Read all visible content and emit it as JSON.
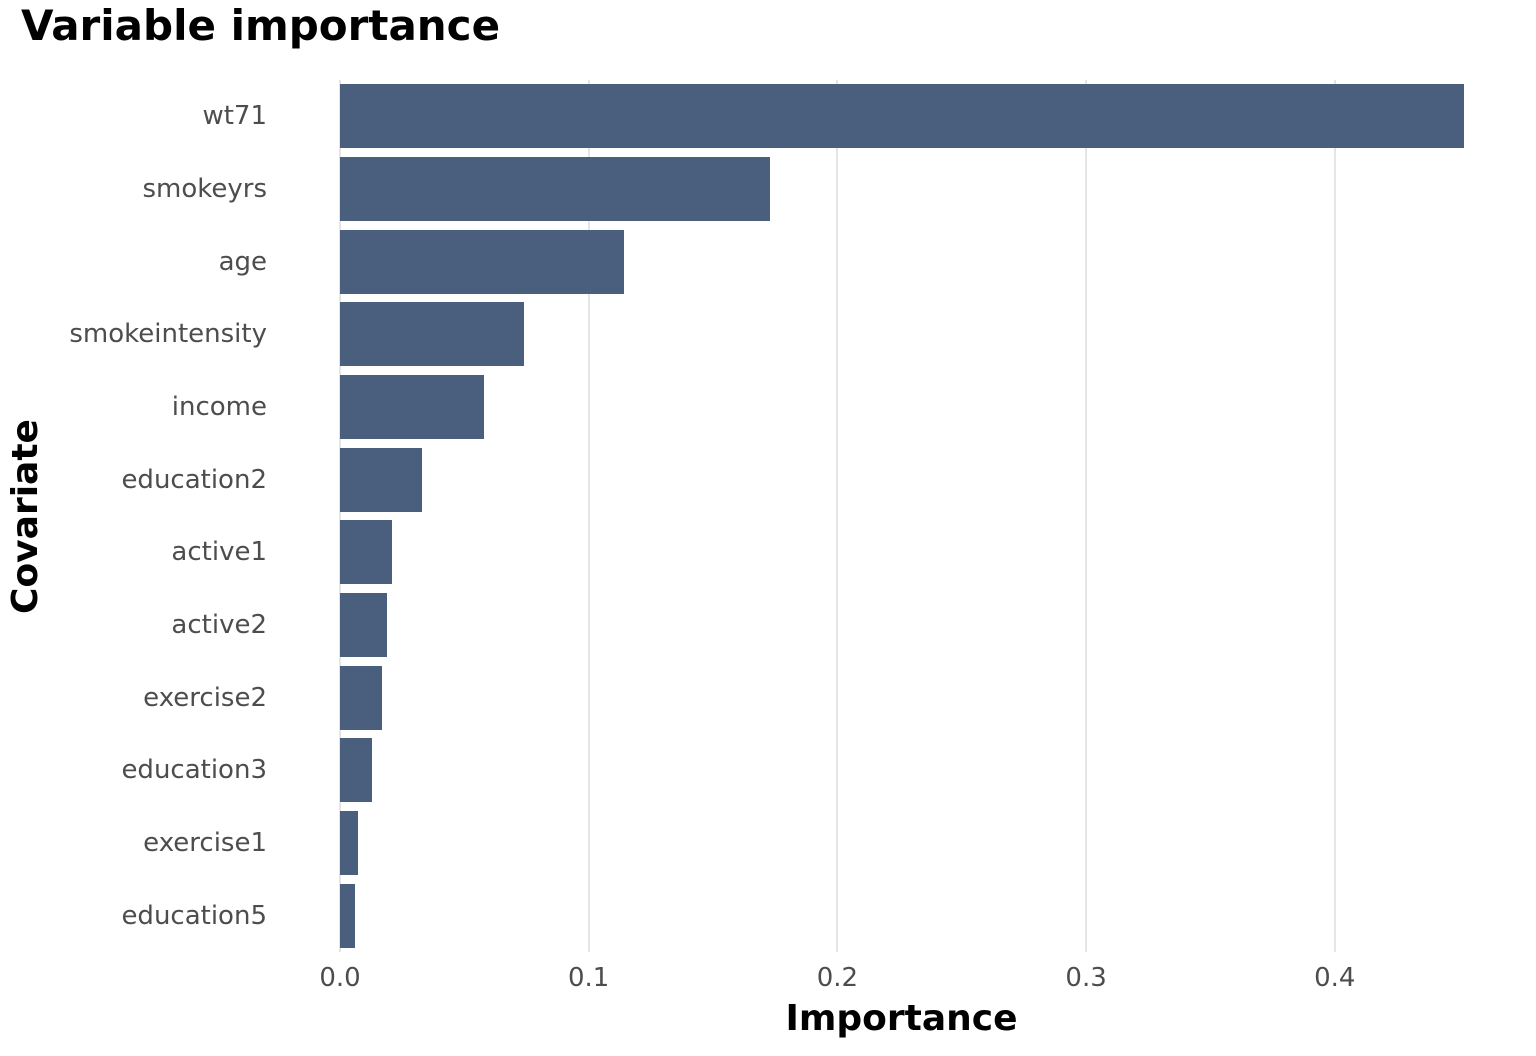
{
  "title": "Variable importance",
  "chart_data": {
    "type": "bar",
    "orientation": "horizontal",
    "title": "Variable importance",
    "xlabel": "Importance",
    "ylabel": "Covariate",
    "categories": [
      "wt71",
      "smokeyrs",
      "age",
      "smokeintensity",
      "income",
      "education2",
      "active1",
      "active2",
      "exercise2",
      "education3",
      "exercise1",
      "education5"
    ],
    "values": [
      0.452,
      0.173,
      0.114,
      0.074,
      0.058,
      0.033,
      0.021,
      0.019,
      0.017,
      0.013,
      0.0074,
      0.0062
    ],
    "x_ticks": [
      0.0,
      0.1,
      0.2,
      0.3,
      0.4
    ],
    "x_tick_labels": [
      "0.0",
      "0.1",
      "0.2",
      "0.3",
      "0.4"
    ],
    "xlim": [
      -0.026,
      0.478
    ],
    "grid": "vertical-major-only",
    "legend": "none",
    "colors": {
      "bar": "#4A5F7D",
      "grid": "#E5E5E5",
      "axis_text": "#4D4D4D",
      "title_text": "#000000",
      "background": "#FFFFFF"
    }
  }
}
